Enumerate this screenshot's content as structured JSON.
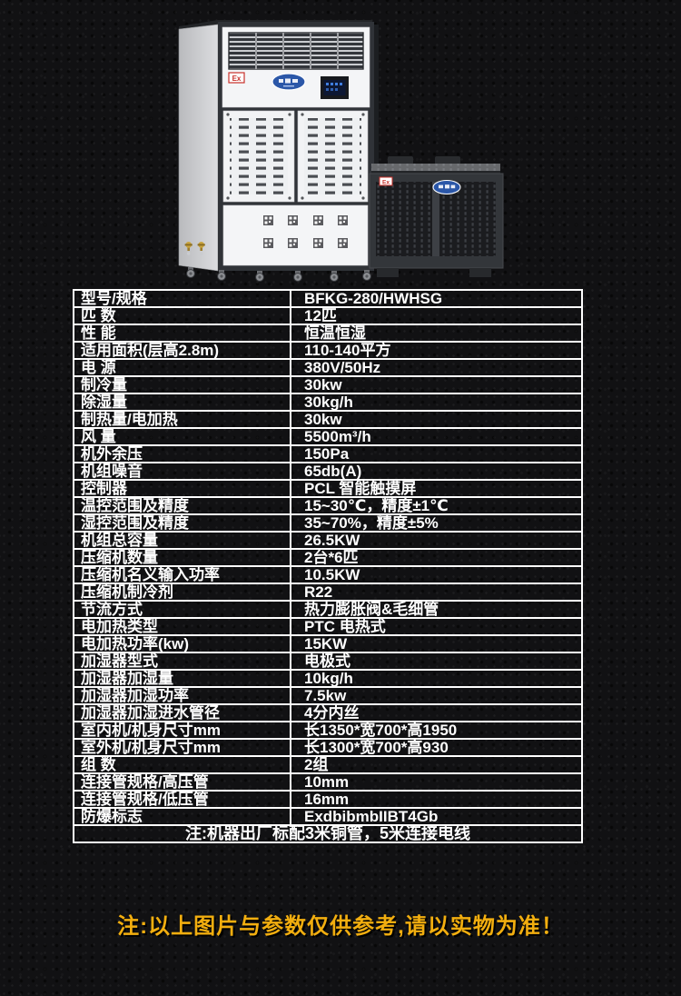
{
  "product": {
    "ex_badge": "Ex",
    "units": [
      "indoor-cabinet-unit",
      "outdoor-condenser-unit"
    ]
  },
  "table": {
    "rows": [
      {
        "label": "型号/规格",
        "value": "BFKG-280/HWHSG"
      },
      {
        "label": "匹 数",
        "value": "12匹"
      },
      {
        "label": "性 能",
        "value": "恒温恒湿"
      },
      {
        "label": "适用面积(层高2.8m)",
        "value": "110-140平方"
      },
      {
        "label": "电 源",
        "value": "380V/50Hz"
      },
      {
        "label": "制冷量",
        "value": "30kw"
      },
      {
        "label": "除湿量",
        "value": "30kg/h"
      },
      {
        "label": "制热量/电加热",
        "value": "30kw"
      },
      {
        "label": "风  量",
        "value": "5500m³/h"
      },
      {
        "label": "机外余压",
        "value": "150Pa"
      },
      {
        "label": "机组噪音",
        "value": "65db(A)"
      },
      {
        "label": "控制器",
        "value": "PCL 智能触摸屏"
      },
      {
        "label": "温控范围及精度",
        "value": "15~30℃，精度±1℃"
      },
      {
        "label": "湿控范围及精度",
        "value": "35~70%，精度±5%"
      },
      {
        "label": "机组总容量",
        "value": "26.5KW"
      },
      {
        "label": "压缩机数量",
        "value": "2台*6匹"
      },
      {
        "label": "压缩机名义输入功率",
        "value": "10.5KW"
      },
      {
        "label": "压缩机制冷剂",
        "value": "R22"
      },
      {
        "label": "节流方式",
        "value": "热力膨胀阀&毛细管"
      },
      {
        "label": "电加热类型",
        "value": "PTC 电热式"
      },
      {
        "label": "电加热功率(kw)",
        "value": "15KW"
      },
      {
        "label": "加湿器型式",
        "value": "电极式"
      },
      {
        "label": "加湿器加湿量",
        "value": "10kg/h"
      },
      {
        "label": "加湿器加湿功率",
        "value": "7.5kw"
      },
      {
        "label": "加湿器加湿进水管径",
        "value": "4分内丝"
      },
      {
        "label": "室内机/机身尺寸mm",
        "value": "长1350*宽700*高1950"
      },
      {
        "label": "室外机/机身尺寸mm",
        "value": "长1300*宽700*高930"
      },
      {
        "label": "组  数",
        "value": "2组"
      },
      {
        "label": "连接管规格/高压管",
        "value": "10mm"
      },
      {
        "label": "连接管规格/低压管",
        "value": "16mm"
      },
      {
        "label": "防爆标志",
        "value": "ExdbibmbIIBT4Gb"
      }
    ],
    "footnote": "注:机器出厂标配3米铜管，5米连接电线"
  },
  "disclaimer": "注:以上图片与参数仅供参考,请以实物为准！",
  "colors": {
    "table_border": "#ffffff",
    "table_text": "#ffffff",
    "disclaimer_yellow": "#f2ae0f",
    "ex_badge_red": "#c8312b",
    "logo_blue": "#2b57a8"
  }
}
